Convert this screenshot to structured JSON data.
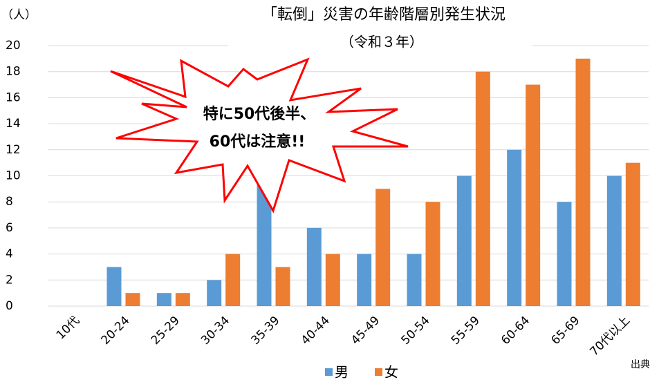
{
  "chart_data": {
    "type": "bar",
    "title": "「転倒」災害の年齢階層別発生状況",
    "subtitle": "（令和３年）",
    "y_label": "（人）",
    "annotation": [
      "特に50代後半、",
      "60代は注意!!"
    ],
    "source": "出典",
    "categories": [
      "10代",
      "20-24",
      "25-29",
      "30-34",
      "35-39",
      "40-44",
      "45-49",
      "50-54",
      "55-59",
      "60-64",
      "65-69",
      "70代以上"
    ],
    "series": [
      {
        "name": "男",
        "color": "#5b9bd5",
        "values": [
          0,
          3,
          1,
          2,
          10,
          6,
          4,
          4,
          10,
          12,
          8,
          10
        ]
      },
      {
        "name": "女",
        "color": "#ed7d31",
        "values": [
          0,
          1,
          1,
          4,
          3,
          4,
          9,
          8,
          18,
          17,
          19,
          11
        ]
      }
    ],
    "ylim": [
      0,
      20
    ],
    "yticks": [
      0,
      2,
      4,
      6,
      8,
      10,
      12,
      14,
      16,
      18,
      20
    ],
    "grid": true
  }
}
